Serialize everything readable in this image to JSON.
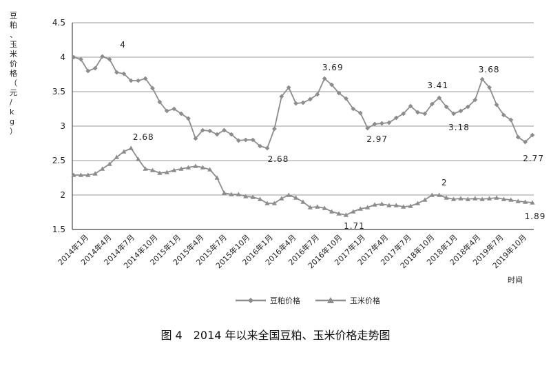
{
  "chart_data": {
    "type": "line",
    "ylabel": "豆粕、玉米价格（元/kg）",
    "xlabel": "时间",
    "ylim": [
      1.5,
      4.5
    ],
    "yticks": [
      "1.5",
      "2",
      "2.5",
      "3",
      "3.5",
      "4",
      "4.5"
    ],
    "grid": true,
    "legend_position": "bottom",
    "x_tick_labels": [
      "2014年1月",
      "2014年4月",
      "2014年7月",
      "2014年10月",
      "2015年1月",
      "2015年4月",
      "2015年7月",
      "2015年10月",
      "2016年1月",
      "2016年4月",
      "2016年7月",
      "2016年10月",
      "2017年1月",
      "2017年4月",
      "2017年7月",
      "2018年10月",
      "2018年1月",
      "2018年4月",
      "2019年7月",
      "2019年10月"
    ],
    "series": [
      {
        "name": "豆粕价格",
        "marker": "diamond",
        "color": "#8c8c8c",
        "values": [
          4.0,
          3.97,
          3.8,
          3.84,
          4.01,
          3.97,
          3.78,
          3.76,
          3.66,
          3.66,
          3.69,
          3.55,
          3.35,
          3.22,
          3.25,
          3.18,
          3.11,
          2.82,
          2.94,
          2.93,
          2.88,
          2.94,
          2.88,
          2.79,
          2.8,
          2.8,
          2.71,
          2.68,
          2.96,
          3.43,
          3.56,
          3.33,
          3.34,
          3.39,
          3.46,
          3.69,
          3.6,
          3.48,
          3.4,
          3.25,
          3.19,
          2.97,
          3.03,
          3.04,
          3.05,
          3.12,
          3.18,
          3.29,
          3.2,
          3.18,
          3.32,
          3.41,
          3.28,
          3.18,
          3.22,
          3.28,
          3.38,
          3.68,
          3.56,
          3.31,
          3.16,
          3.09,
          2.84,
          2.77,
          2.87
        ]
      },
      {
        "name": "玉米价格",
        "marker": "triangle",
        "color": "#8c8c8c",
        "values": [
          2.29,
          2.29,
          2.29,
          2.31,
          2.38,
          2.45,
          2.55,
          2.63,
          2.68,
          2.52,
          2.38,
          2.36,
          2.32,
          2.33,
          2.36,
          2.38,
          2.4,
          2.42,
          2.4,
          2.37,
          2.25,
          2.03,
          2.01,
          2.01,
          1.98,
          1.97,
          1.94,
          1.88,
          1.88,
          1.95,
          2.0,
          1.96,
          1.9,
          1.82,
          1.83,
          1.81,
          1.76,
          1.73,
          1.71,
          1.76,
          1.8,
          1.82,
          1.86,
          1.87,
          1.85,
          1.85,
          1.83,
          1.84,
          1.88,
          1.93,
          2.0,
          2.0,
          1.96,
          1.94,
          1.95,
          1.94,
          1.95,
          1.94,
          1.95,
          1.96,
          1.94,
          1.93,
          1.91,
          1.9,
          1.89
        ]
      }
    ],
    "annotations": [
      {
        "text": "4",
        "series": 0,
        "index": 4
      },
      {
        "text": "2.68",
        "series": 1,
        "index": 8
      },
      {
        "text": "2.68",
        "series": 0,
        "index": 27
      },
      {
        "text": "3.69",
        "series": 0,
        "index": 35
      },
      {
        "text": "1.71",
        "series": 1,
        "index": 38
      },
      {
        "text": "2.97",
        "series": 0,
        "index": 41
      },
      {
        "text": "3.41",
        "series": 0,
        "index": 51
      },
      {
        "text": "3.18",
        "series": 0,
        "index": 53
      },
      {
        "text": "2",
        "series": 1,
        "index": 50
      },
      {
        "text": "3.68",
        "series": 0,
        "index": 57
      },
      {
        "text": "2.77",
        "series": 0,
        "index": 63
      },
      {
        "text": "1.89",
        "series": 1,
        "index": 64
      }
    ]
  },
  "caption": "图 4　2014 年以来全国豆粕、玉米价格走势图"
}
